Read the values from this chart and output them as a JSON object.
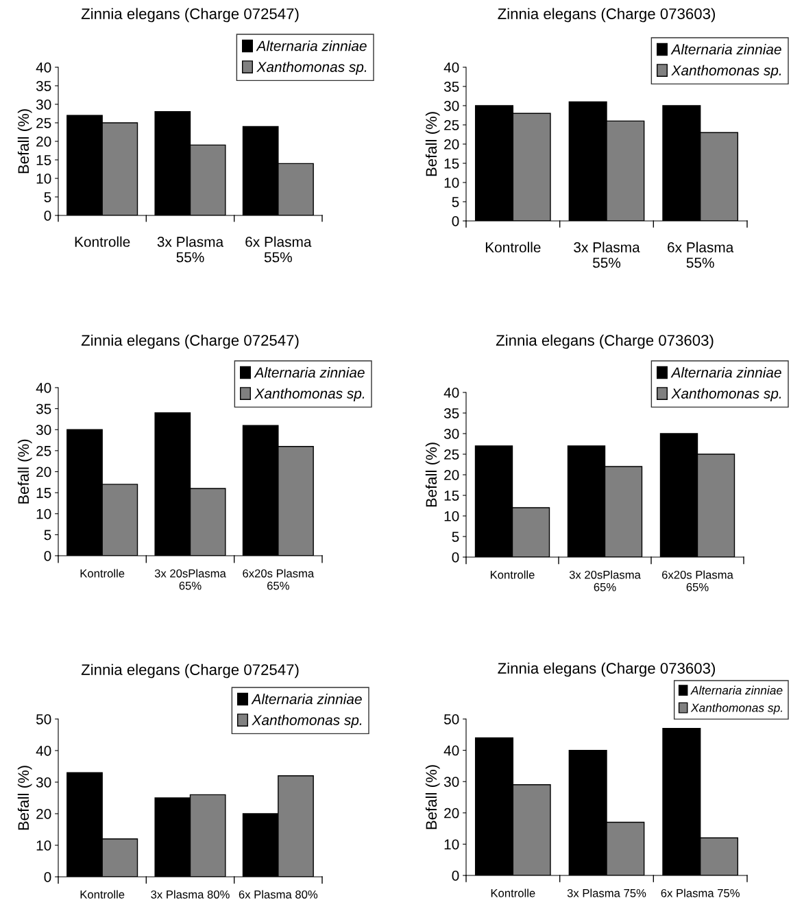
{
  "chart_data": [
    {
      "type": "bar",
      "title": "Zinnia elegans (Charge 072547)",
      "ylabel": "Befall (%)",
      "categories": [
        "Kontrolle",
        "3x Plasma\n55%",
        "6x Plasma\n55%"
      ],
      "series": [
        {
          "name": "Alternaria zinniae",
          "color": "#000000",
          "values": [
            27,
            28,
            24
          ]
        },
        {
          "name": "Xanthomonas sp.",
          "color": "#808080",
          "values": [
            25,
            19,
            14
          ]
        }
      ],
      "ylim": [
        0,
        40
      ],
      "yticks": [
        0,
        5,
        10,
        15,
        20,
        25,
        30,
        35,
        40
      ],
      "grid": false,
      "legend": "top right"
    },
    {
      "type": "bar",
      "title": "Zinnia elegans (Charge 073603)",
      "ylabel": "Befall (%)",
      "categories": [
        "Kontrolle",
        "3x Plasma\n55%",
        "6x Plasma\n55%"
      ],
      "series": [
        {
          "name": "Alternaria zinniae",
          "color": "#000000",
          "values": [
            30,
            31,
            30
          ]
        },
        {
          "name": "Xanthomonas sp.",
          "color": "#808080",
          "values": [
            28,
            26,
            23
          ]
        }
      ],
      "ylim": [
        0,
        40
      ],
      "yticks": [
        0,
        5,
        10,
        15,
        20,
        25,
        30,
        35,
        40
      ],
      "grid": false,
      "legend": "top right"
    },
    {
      "type": "bar",
      "title": "Zinnia elegans (Charge 072547)",
      "ylabel": "Befall (%)",
      "categories": [
        "Kontrolle",
        "3x 20sPlasma\n65%",
        "6x20s Plasma\n65%"
      ],
      "series": [
        {
          "name": "Alternaria zinniae",
          "color": "#000000",
          "values": [
            30,
            34,
            31
          ]
        },
        {
          "name": "Xanthomonas sp.",
          "color": "#808080",
          "values": [
            17,
            16,
            26
          ]
        }
      ],
      "ylim": [
        0,
        40
      ],
      "yticks": [
        0,
        5,
        10,
        15,
        20,
        25,
        30,
        35,
        40
      ],
      "grid": false,
      "legend": "top right"
    },
    {
      "type": "bar",
      "title": "Zinnia elegans (Charge 073603)",
      "ylabel": "Befall (%)",
      "categories": [
        "Kontrolle",
        "3x 20sPlasma\n65%",
        "6x20s Plasma\n65%"
      ],
      "series": [
        {
          "name": "Alternaria zinniae",
          "color": "#000000",
          "values": [
            27,
            27,
            30
          ]
        },
        {
          "name": "Xanthomonas sp.",
          "color": "#808080",
          "values": [
            12,
            22,
            25
          ]
        }
      ],
      "ylim": [
        0,
        40
      ],
      "yticks": [
        0,
        5,
        10,
        15,
        20,
        25,
        30,
        35,
        40
      ],
      "grid": false,
      "legend": "top right"
    },
    {
      "type": "bar",
      "title": "Zinnia elegans (Charge 072547)",
      "ylabel": "Befall (%)",
      "categories": [
        "Kontrolle",
        "3x Plasma 80%",
        "6x Plasma 80%"
      ],
      "series": [
        {
          "name": "Alternaria zinniae",
          "color": "#000000",
          "values": [
            33,
            25,
            20
          ]
        },
        {
          "name": "Xanthomonas sp.",
          "color": "#808080",
          "values": [
            12,
            26,
            32
          ]
        }
      ],
      "ylim": [
        0,
        50
      ],
      "yticks": [
        0,
        10,
        20,
        30,
        40,
        50
      ],
      "grid": false,
      "legend": "top right"
    },
    {
      "type": "bar",
      "title": "Zinnia elegans (Charge 073603)",
      "ylabel": "Befall (%)",
      "categories": [
        "Kontrolle",
        "3x Plasma 75%",
        "6x Plasma 75%"
      ],
      "series": [
        {
          "name": "Alternaria zinniae",
          "color": "#000000",
          "values": [
            44,
            40,
            47
          ]
        },
        {
          "name": "Xanthomonas sp.",
          "color": "#808080",
          "values": [
            29,
            17,
            12
          ]
        }
      ],
      "ylim": [
        0,
        50
      ],
      "yticks": [
        0,
        10,
        20,
        30,
        40,
        50
      ],
      "grid": false,
      "legend": "top right"
    }
  ]
}
